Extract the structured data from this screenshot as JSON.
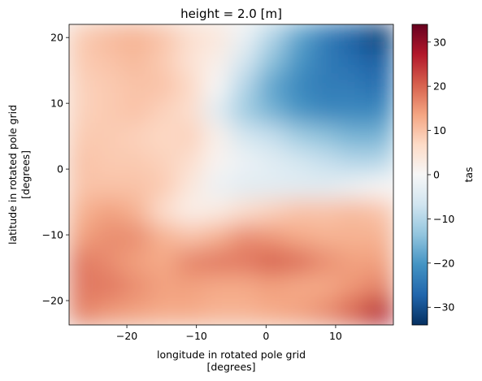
{
  "chart_data": {
    "type": "heatmap",
    "title": "height = 2.0 [m]",
    "xlabel": [
      "longitude in rotated pole grid",
      "[degrees]"
    ],
    "ylabel": [
      "latitude in rotated pole grid",
      "[degrees]"
    ],
    "xlim": [
      -28.3,
      18.3
    ],
    "ylim": [
      -23.7,
      22.0
    ],
    "xticks": [
      -20,
      -10,
      0,
      10
    ],
    "xtick_labels": [
      "−20",
      "−10",
      "0",
      "10"
    ],
    "yticks": [
      -20,
      -10,
      0,
      10,
      20
    ],
    "ytick_labels": [
      "−20",
      "−10",
      "0",
      "10",
      "20"
    ],
    "colorbar": {
      "label": "tas",
      "range": [
        -34,
        34
      ],
      "ticks": [
        -30,
        -20,
        -10,
        0,
        10,
        20,
        30
      ],
      "tick_labels": [
        "−30",
        "−20",
        "−10",
        "0",
        "10",
        "20",
        "30"
      ],
      "colormap": "RdBu_r",
      "colors": [
        "#053061",
        "#2166ac",
        "#4393c3",
        "#92c5de",
        "#d1e5f0",
        "#f7f7f7",
        "#fddbc7",
        "#f4a582",
        "#d6604d",
        "#b2182b",
        "#67001f"
      ]
    },
    "grid": false,
    "legend": "none",
    "field_cells": {
      "note_cols": "longitude centres",
      "lon": [
        -26,
        -22,
        -18,
        -14,
        -10,
        -6,
        -2,
        2,
        6,
        10,
        14,
        17
      ],
      "lat": [
        20,
        16,
        12,
        8,
        4,
        0,
        -4,
        -8,
        -12,
        -16,
        -20,
        -23
      ],
      "values": [
        [
          9,
          11,
          12,
          10,
          6,
          4,
          -2,
          -10,
          -18,
          -24,
          -28,
          -32
        ],
        [
          9,
          10,
          11,
          9,
          5,
          2,
          -6,
          -14,
          -20,
          -24,
          -26,
          -28
        ],
        [
          8,
          9,
          10,
          10,
          7,
          0,
          -10,
          -18,
          -22,
          -24,
          -24,
          -26
        ],
        [
          8,
          9,
          10,
          8,
          6,
          -4,
          -12,
          -16,
          -20,
          -22,
          -22,
          -22
        ],
        [
          9,
          9,
          8,
          7,
          8,
          2,
          -6,
          -8,
          -12,
          -14,
          -16,
          -16
        ],
        [
          10,
          9,
          9,
          8,
          6,
          1,
          -2,
          -4,
          -6,
          -8,
          -10,
          -10
        ],
        [
          10,
          10,
          10,
          9,
          4,
          -2,
          -4,
          -4,
          -4,
          -4,
          -2,
          0
        ],
        [
          12,
          14,
          12,
          6,
          2,
          3,
          6,
          8,
          10,
          10,
          11,
          10
        ],
        [
          14,
          16,
          16,
          12,
          10,
          12,
          16,
          15,
          13,
          12,
          12,
          12
        ],
        [
          18,
          16,
          14,
          13,
          17,
          18,
          18,
          20,
          19,
          16,
          14,
          14
        ],
        [
          18,
          18,
          16,
          14,
          14,
          13,
          13,
          14,
          13,
          13,
          15,
          17
        ],
        [
          17,
          15,
          14,
          13,
          13,
          12,
          12,
          13,
          14,
          16,
          20,
          26
        ]
      ]
    }
  }
}
